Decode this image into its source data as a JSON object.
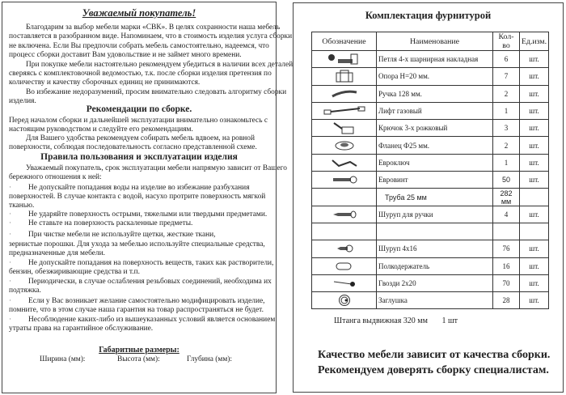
{
  "left": {
    "title": "Уважаемый покупатель!",
    "intro": [
      "Благодарим за выбор мебели марки «СВК». В целях сохранности наша мебель",
      "поставляется в разобранном виде. Напоминаем, что в стоимость изделия услуга сборки",
      "не включена. Если Вы предпочли собрать мебель самостоятельно, надеемся, что",
      "процесс сборки доставит Вам удовольствие и не займет много времени.",
      "При покупке мебели настоятельно рекомендуем убедиться в наличии всех деталей,",
      "сверяясь с комплектовочной ведомостью, т.к. после сборки изделия претензия по",
      "количеству и качеству сборочных единиц не принимаются.",
      "Во избежание недоразумений, просим внимательно следовать алгоритму сборки",
      "изделия."
    ],
    "rec_heading": "Рекомендации по сборке.",
    "rec": [
      "Перед началом сборки и дальнейшей эксплуатации внимательно ознакомьтесь с",
      "настоящим руководством и следуйте его рекомендациям.",
      "Для Вашего удобства рекомендуем собирать мебель вдвоем, на ровной",
      "поверхности, соблюдая последовательность согласно представленной схеме."
    ],
    "rules_heading": "Правила пользования и эксплуатации изделия",
    "rules": [
      "Уважаемый покупатель, срок эксплуатации мебели напрямую зависит от Вашего",
      "бережного отношения к ней:",
      "Не допускайте попадания воды на изделие во избежание разбухания",
      "поверхностей. В случае контакта с водой, насухо протрите поверхность мягкой",
      "тканью.",
      "Не ударяйте поверхность острыми, тяжелыми или твердыми предметами.",
      "Не ставьте на поверхность раскаленные предметы.",
      "При чистке мебели не используйте щетки, жесткие ткани,",
      "зернистые порошки. Для ухода за мебелью используйте специальные средства,",
      "предназначенные  для мебели.",
      "Не допускайте попадания на поверхность веществ, таких как растворители,",
      "бензин, обезжиривающие средства и т.п.",
      "Периодически, в случае ослабления резьбовых соединений, необходима их",
      "подтяжка.",
      "Если у Вас возникает желание самостоятельно модифицировать изделие,",
      "помните, что в этом случае наша гарантия на товар распространяться не будет.",
      "Несоблюдение каких-либо из вышеуказанных условий  является основанием",
      "утраты права на  гарантийное обслуживание."
    ],
    "bullet": "·",
    "dims_heading": "Габаритные размеры:",
    "dims": [
      "Ширина (мм):",
      "Высота (мм):",
      "Глубина (мм):"
    ]
  },
  "right": {
    "title": "Комплектация фурнитурой",
    "headers": [
      "Обозначение",
      "Наименование",
      "Кол-во",
      "Ед.изм."
    ],
    "rows": [
      {
        "icon": "hinge-icon",
        "name": "Петля 4-х шарнирная накладная",
        "qty": "6",
        "unit": "шт."
      },
      {
        "icon": "support-icon",
        "name": "Опора Н=20 мм.",
        "qty": "7",
        "unit": "шт."
      },
      {
        "icon": "handle-icon",
        "name": "Ручка 128 мм.",
        "qty": "2",
        "unit": "шт."
      },
      {
        "icon": "gas-lift-icon",
        "name": "Лифт газовый",
        "qty": "1",
        "unit": "шт."
      },
      {
        "icon": "hook-icon",
        "name": "Крючок 3-х рожковый",
        "qty": "3",
        "unit": "шт."
      },
      {
        "icon": "flange-icon",
        "name": "Фланец Ф25 мм.",
        "qty": "2",
        "unit": "шт."
      },
      {
        "icon": "hex-key-icon",
        "name": "Евроключ",
        "qty": "1",
        "unit": "шт."
      },
      {
        "icon": "euro-screw-icon",
        "name": "Евровинт",
        "qty": "50",
        "unit": "шт."
      },
      {
        "icon": "",
        "name": "Труба 25 мм",
        "qty": "282 мм",
        "unit": ""
      },
      {
        "icon": "handle-screw-icon",
        "name": "Шуруп для ручки",
        "qty": "4",
        "unit": "шт."
      },
      {
        "icon": "",
        "name": "",
        "qty": "",
        "unit": ""
      },
      {
        "icon": "screw-icon",
        "name": "Шуруп 4х16",
        "qty": "76",
        "unit": "шт."
      },
      {
        "icon": "shelf-pin-icon",
        "name": "Полкодержатель",
        "qty": "16",
        "unit": "шт."
      },
      {
        "icon": "nail-icon",
        "name": "Гвозди 2х20",
        "qty": "70",
        "unit": "шт."
      },
      {
        "icon": "cap-icon",
        "name": "Заглушка",
        "qty": "28",
        "unit": "шт."
      }
    ],
    "note": "Штанга выдвижная 320 мм       1 шт",
    "bottom": [
      "Качество мебели зависит от качества сборки.",
      "Рекомендуем доверять сборку специалистам."
    ]
  }
}
